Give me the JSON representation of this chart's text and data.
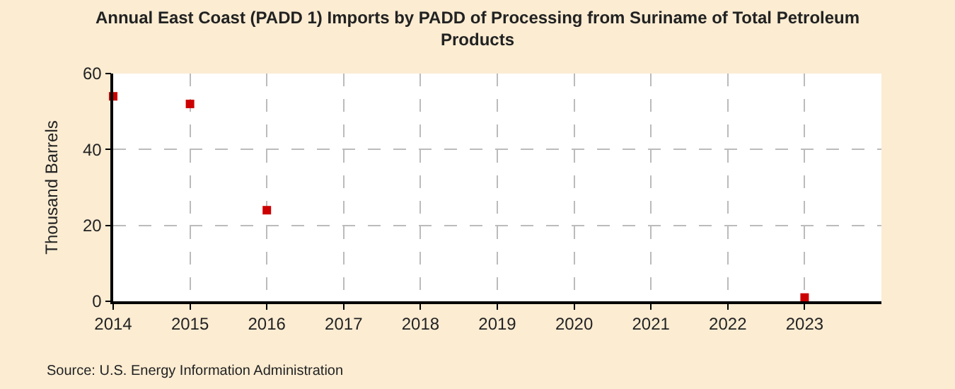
{
  "chart_data": {
    "type": "scatter",
    "title": "Annual East Coast (PADD 1) Imports by PADD of Processing from Suriname of Total Petroleum Products",
    "ylabel": "Thousand Barrels",
    "x": [
      2014,
      2015,
      2016,
      2023
    ],
    "series": [
      {
        "color": "#cc0000",
        "values": [
          54,
          52,
          24,
          1
        ]
      }
    ],
    "xlim": [
      2014,
      2024
    ],
    "xticks": [
      2014,
      2015,
      2016,
      2017,
      2018,
      2019,
      2020,
      2021,
      2022,
      2023
    ],
    "ylim": [
      0,
      60
    ],
    "yticks": [
      0,
      20,
      40,
      60
    ],
    "grid": true,
    "marker": "square",
    "annotations": [
      "Source: U.S. Energy Information Administration"
    ]
  }
}
